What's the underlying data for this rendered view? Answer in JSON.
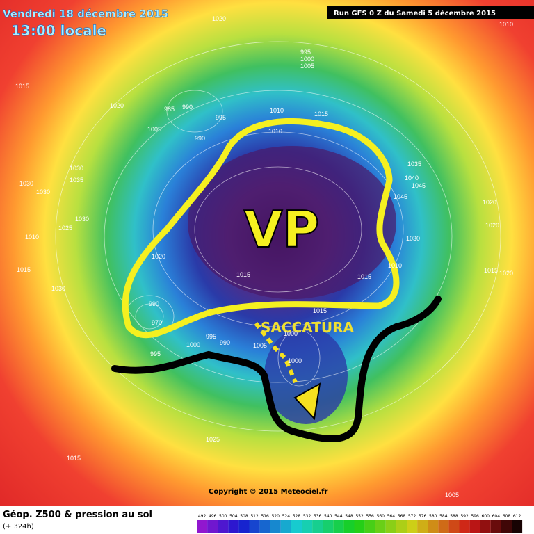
{
  "header": {
    "date": "Vendredi 18 décembre 2015",
    "time": "13:00 locale",
    "run": "Run GFS 0 Z du Samedi 5 décembre 2015"
  },
  "annotations": {
    "vp": "VP",
    "saccatura": "SACCATURA"
  },
  "isobar_labels": [
    1020,
    1010,
    995,
    1000,
    1005,
    1015,
    1020,
    985,
    990,
    995,
    1010,
    1015,
    1005,
    990,
    1010,
    1035,
    1030,
    1035,
    1040,
    1045,
    1030,
    1030,
    1045,
    1020,
    1030,
    1025,
    1020,
    1010,
    1030,
    1020,
    1010,
    1015,
    1015,
    1020,
    1015,
    1030,
    990,
    970,
    1015,
    1000,
    995,
    990,
    1005,
    1000,
    1000,
    995,
    1025,
    1015,
    1005,
    1015
  ],
  "copyright": "Copyright © 2015 Meteociel.fr",
  "legend": {
    "title": "Géop. Z500 & pression au sol",
    "lead": "(+ 324h)",
    "levels": [
      492,
      496,
      500,
      504,
      508,
      512,
      516,
      520,
      524,
      528,
      532,
      536,
      540,
      544,
      548,
      552,
      556,
      560,
      564,
      568,
      572,
      576,
      580,
      584,
      588,
      592,
      596,
      600,
      604,
      608,
      612
    ]
  }
}
